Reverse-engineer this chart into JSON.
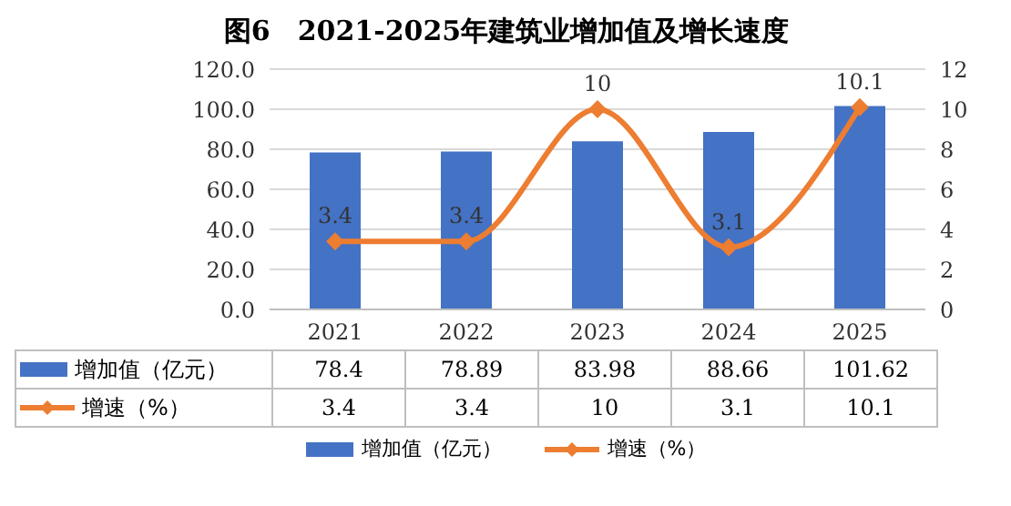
{
  "chart_data": {
    "type": "bar",
    "title": "图6　2021-2025年建筑业增加值及增长速度",
    "categories": [
      "2021",
      "2022",
      "2023",
      "2024",
      "2025"
    ],
    "series": [
      {
        "name": "增加值（亿元）",
        "type": "bar",
        "color": "#4472c4",
        "values": [
          78.4,
          78.89,
          83.98,
          88.66,
          101.62
        ]
      },
      {
        "name": "增速（%）",
        "type": "line",
        "axis": "y2",
        "color": "#ed7d31",
        "marker": "diamond",
        "values": [
          3.4,
          3.4,
          10,
          3.1,
          10.1
        ],
        "value_labels": [
          "3.4",
          "3.4",
          "10",
          "3.1",
          "10.1"
        ]
      }
    ],
    "ylim": [
      0,
      120
    ],
    "yticks": [
      {
        "value": 0,
        "label": "0.0"
      },
      {
        "value": 20,
        "label": "20.0"
      },
      {
        "value": 40,
        "label": "40.0"
      },
      {
        "value": 60,
        "label": "60.0"
      },
      {
        "value": 80,
        "label": "80.0"
      },
      {
        "value": 100,
        "label": "100.0"
      },
      {
        "value": 120,
        "label": "120.0"
      }
    ],
    "y2lim": [
      0,
      12
    ],
    "y2ticks": [
      0,
      2,
      4,
      6,
      8,
      10,
      12
    ],
    "grid": "y",
    "legend": "bottom",
    "data_labels": true
  }
}
